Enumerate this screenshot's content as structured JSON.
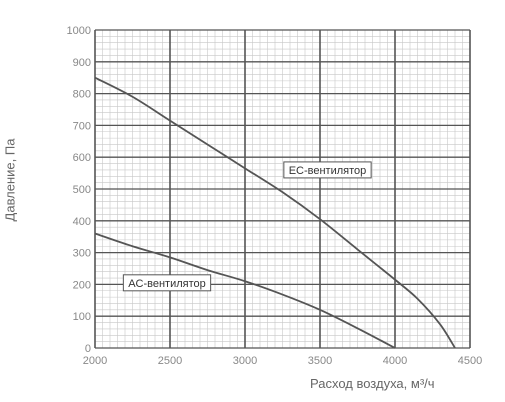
{
  "chart_data": {
    "type": "line",
    "xlabel": "Расход воздуха, м³/ч",
    "ylabel": "Давление, Па",
    "xlim": [
      2000,
      4500
    ],
    "ylim": [
      0,
      1000
    ],
    "x_ticks": [
      "2000",
      "2500",
      "3000",
      "3500",
      "4000",
      "4500"
    ],
    "y_ticks": [
      "0",
      "100",
      "200",
      "300",
      "400",
      "500",
      "600",
      "700",
      "800",
      "900",
      "1000"
    ],
    "grid": true,
    "series": [
      {
        "name": "EC-вентилятор",
        "points": [
          [
            2000,
            850
          ],
          [
            2250,
            790
          ],
          [
            2500,
            715
          ],
          [
            2750,
            640
          ],
          [
            3000,
            565
          ],
          [
            3250,
            490
          ],
          [
            3500,
            405
          ],
          [
            3750,
            310
          ],
          [
            4000,
            215
          ],
          [
            4150,
            155
          ],
          [
            4300,
            75
          ],
          [
            4400,
            0
          ]
        ]
      },
      {
        "name": "AC-вентилятор",
        "points": [
          [
            2000,
            360
          ],
          [
            2250,
            320
          ],
          [
            2500,
            285
          ],
          [
            2750,
            245
          ],
          [
            3000,
            210
          ],
          [
            3250,
            168
          ],
          [
            3500,
            120
          ],
          [
            3750,
            62
          ],
          [
            4000,
            0
          ]
        ]
      }
    ],
    "colors": {
      "curve": "#555555",
      "major_grid": "#555555",
      "minor_grid": "#c8c8c8",
      "tick_text": "#888888"
    }
  }
}
